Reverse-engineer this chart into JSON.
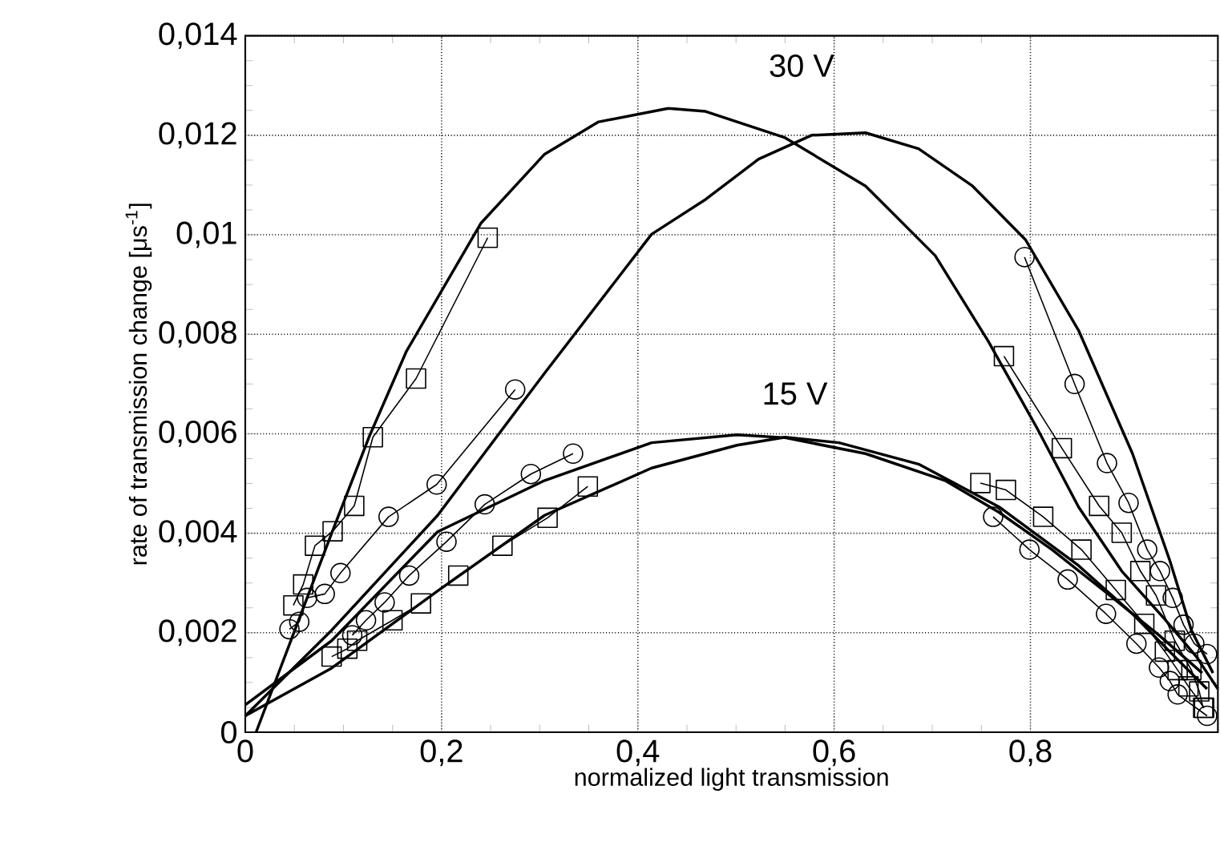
{
  "chart_data": {
    "type": "line",
    "xlabel": "normalized light transmission",
    "ylabel": "rate of transmission change [μs$^{-1}$]",
    "xlim": [
      0,
      0.991
    ],
    "ylim": [
      0,
      0.014
    ],
    "xticks": [
      0,
      {
        "value": 0.2,
        "label": "0,2"
      },
      {
        "value": 0.4,
        "label": "0,4"
      },
      {
        "value": 0.6,
        "label": "0,6"
      },
      {
        "value": 0.8,
        "label": "0,8"
      }
    ],
    "yticks": [
      0,
      {
        "value": 0.002,
        "label": "0,002"
      },
      {
        "value": 0.004,
        "label": "0,004"
      },
      {
        "value": 0.006,
        "label": "0,006"
      },
      {
        "value": 0.008,
        "label": "0,008"
      },
      {
        "value": 0.01,
        "label": "0,01"
      },
      {
        "value": 0.012,
        "label": "0,012"
      },
      {
        "value": 0.014,
        "label": "0,014"
      }
    ],
    "grid": true,
    "series": [
      {
        "color": "#000000",
        "marker": "square",
        "x": [
          0.049,
          0.059,
          0.071,
          0.089,
          0.111,
          0.13,
          0.174,
          0.247,
          null,
          0.773,
          0.832,
          0.87,
          0.893,
          0.912,
          0.928,
          0.947,
          0.964,
          0.972,
          0.976
        ],
        "values": [
          0.00255,
          0.00297,
          0.00375,
          0.00404,
          0.00455,
          0.00593,
          0.00711,
          0.00994,
          null,
          0.00756,
          0.00571,
          0.00455,
          0.00401,
          0.00324,
          0.00275,
          0.00184,
          0.00125,
          0.00082,
          0.00049
        ]
      },
      {
        "color": "#000000",
        "marker": "circle",
        "x": [
          0.045,
          0.055,
          0.063,
          0.081,
          0.097,
          0.146,
          0.195,
          0.275,
          null,
          0.794,
          0.845,
          0.878,
          0.9,
          0.919,
          0.932,
          0.945,
          0.956,
          0.967,
          0.98
        ],
        "values": [
          0.00207,
          0.00222,
          0.0027,
          0.00278,
          0.0032,
          0.00433,
          0.00498,
          0.00689,
          null,
          0.00955,
          0.007,
          0.00541,
          0.00461,
          0.00367,
          0.00324,
          0.0027,
          0.00216,
          0.00178,
          0.00157
        ]
      },
      {
        "color": "#000000",
        "marker": "square",
        "x": [
          0.088,
          0.104,
          0.114,
          0.15,
          0.179,
          0.217,
          0.262,
          0.308,
          0.349,
          null,
          0.749,
          0.775,
          0.813,
          0.852,
          0.887,
          0.916,
          0.937,
          0.95,
          0.961,
          0.977
        ],
        "values": [
          0.00152,
          0.00168,
          0.00184,
          0.00225,
          0.00259,
          0.00315,
          0.00375,
          0.00431,
          0.00494,
          null,
          0.00501,
          0.00487,
          0.00433,
          0.00367,
          0.00286,
          0.00218,
          0.00162,
          0.00125,
          0.00092,
          0.00049
        ]
      },
      {
        "color": "#000000",
        "marker": "circle",
        "x": [
          0.109,
          0.123,
          0.142,
          0.167,
          0.205,
          0.244,
          0.291,
          0.334,
          null,
          0.762,
          0.799,
          0.838,
          0.877,
          0.908,
          0.931,
          0.942,
          0.95,
          0.98
        ],
        "values": [
          0.00195,
          0.00225,
          0.00261,
          0.00315,
          0.00383,
          0.00458,
          0.00519,
          0.0056,
          null,
          0.00433,
          0.00367,
          0.00307,
          0.00238,
          0.00178,
          0.0013,
          0.00103,
          0.00076,
          0.00033
        ]
      },
      {
        "color": "#000000",
        "marker": "none",
        "x": [
          0.011,
          0.088,
          0.126,
          0.164,
          0.24,
          0.305,
          0.36,
          0.431,
          0.469,
          0.55,
          0.632,
          0.703,
          0.757,
          0.806,
          0.849,
          0.893,
          0.937,
          0.969,
          0.991
        ],
        "values": [
          0,
          0.004,
          0.00593,
          0.00765,
          0.01023,
          0.01162,
          0.01227,
          0.01254,
          0.01248,
          0.01195,
          0.01098,
          0.00958,
          0.00786,
          0.00614,
          0.00453,
          0.00324,
          0.00227,
          0.00152,
          0.00087
        ]
      },
      {
        "color": "#000000",
        "marker": "none",
        "x": [
          0,
          0.088,
          0.196,
          0.305,
          0.414,
          0.469,
          0.501,
          0.523,
          0.577,
          0.632,
          0.686,
          0.741,
          0.795,
          0.849,
          0.904,
          0.942,
          0.964,
          0.986
        ],
        "values": [
          0.00033,
          0.00205,
          0.00436,
          0.00722,
          0.01001,
          0.01071,
          0.01119,
          0.01152,
          0.012,
          0.01205,
          0.01173,
          0.01098,
          0.0099,
          0.00808,
          0.0056,
          0.00345,
          0.00205,
          0.00119
        ]
      },
      {
        "color": "#000000",
        "marker": "none",
        "x": [
          0,
          0.088,
          0.196,
          0.305,
          0.414,
          0.501,
          0.55,
          0.632,
          0.713,
          0.768,
          0.822,
          0.877,
          0.931,
          0.975
        ],
        "values": [
          0.00055,
          0.00184,
          0.00403,
          0.00506,
          0.00582,
          0.00598,
          0.00592,
          0.0056,
          0.00506,
          0.00442,
          0.00367,
          0.00281,
          0.00195,
          0.00119
        ]
      },
      {
        "color": "#000000",
        "marker": "none",
        "x": [
          0,
          0.088,
          0.196,
          0.305,
          0.414,
          0.501,
          0.55,
          0.605,
          0.686,
          0.768,
          0.849,
          0.904,
          0.947,
          0.98
        ],
        "values": [
          0.00033,
          0.00129,
          0.00284,
          0.00436,
          0.00531,
          0.00577,
          0.00593,
          0.00582,
          0.00539,
          0.00453,
          0.00335,
          0.00238,
          0.00152,
          0.00087
        ]
      }
    ],
    "annotations": [
      "30 V",
      "15 V"
    ]
  }
}
